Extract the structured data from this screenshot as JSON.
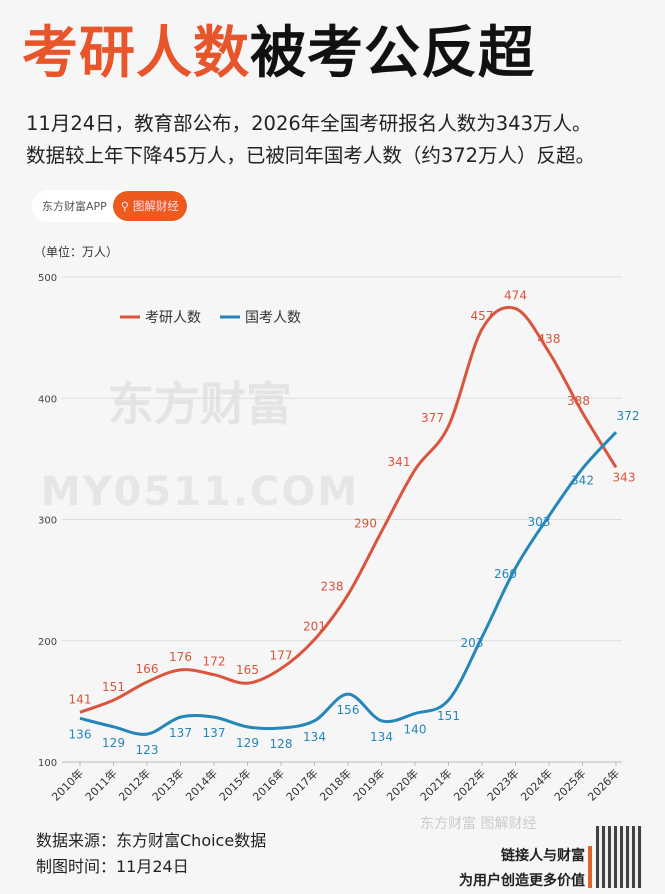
{
  "header": {
    "title_highlight": "考研人数",
    "title_rest": "被考公反超",
    "subtitle_line1": "11月24日，教育部公布，2026年全国考研报名人数为343万人。",
    "subtitle_line2": "数据较上年下降45万人，已被同年国考人数（约372万人）反超。"
  },
  "badge": {
    "app_label": "东方财富APP",
    "button_label": "图解财经",
    "search_icon": "search-icon"
  },
  "colors": {
    "accent": "#e8552a",
    "kaoyan": "#d9553d",
    "guokao": "#2486b9"
  },
  "chart_data": {
    "type": "line",
    "unit_label": "（单位：万人）",
    "x": [
      "2010年",
      "2011年",
      "2012年",
      "2013年",
      "2014年",
      "2015年",
      "2016年",
      "2017年",
      "2018年",
      "2019年",
      "2020年",
      "2021年",
      "2022年",
      "2023年",
      "2024年",
      "2025年",
      "2026年"
    ],
    "series": [
      {
        "name": "考研人数",
        "values": [
          141,
          151,
          166,
          176,
          172,
          165,
          177,
          201,
          238,
          290,
          341,
          377,
          457,
          474,
          438,
          388,
          343
        ]
      },
      {
        "name": "国考人数",
        "values": [
          136,
          129,
          123,
          137,
          137,
          129,
          128,
          134,
          156,
          134,
          140,
          151,
          203,
          260,
          303,
          342,
          372
        ]
      }
    ],
    "ylim": [
      100,
      500
    ],
    "yticks": [
      "100",
      "200",
      "300",
      "400",
      "500"
    ],
    "grid": true,
    "legend": "top-left"
  },
  "watermarks": {
    "center_logo": "东方财富",
    "site": "MY0511.COM",
    "footer_logo": "东方财富 图解财经"
  },
  "footer": {
    "source": "数据来源：东方财富Choice数据",
    "date": "制图时间：11月24日",
    "slogan1": "链接人与财富",
    "slogan2": "为用户创造更多价值"
  }
}
